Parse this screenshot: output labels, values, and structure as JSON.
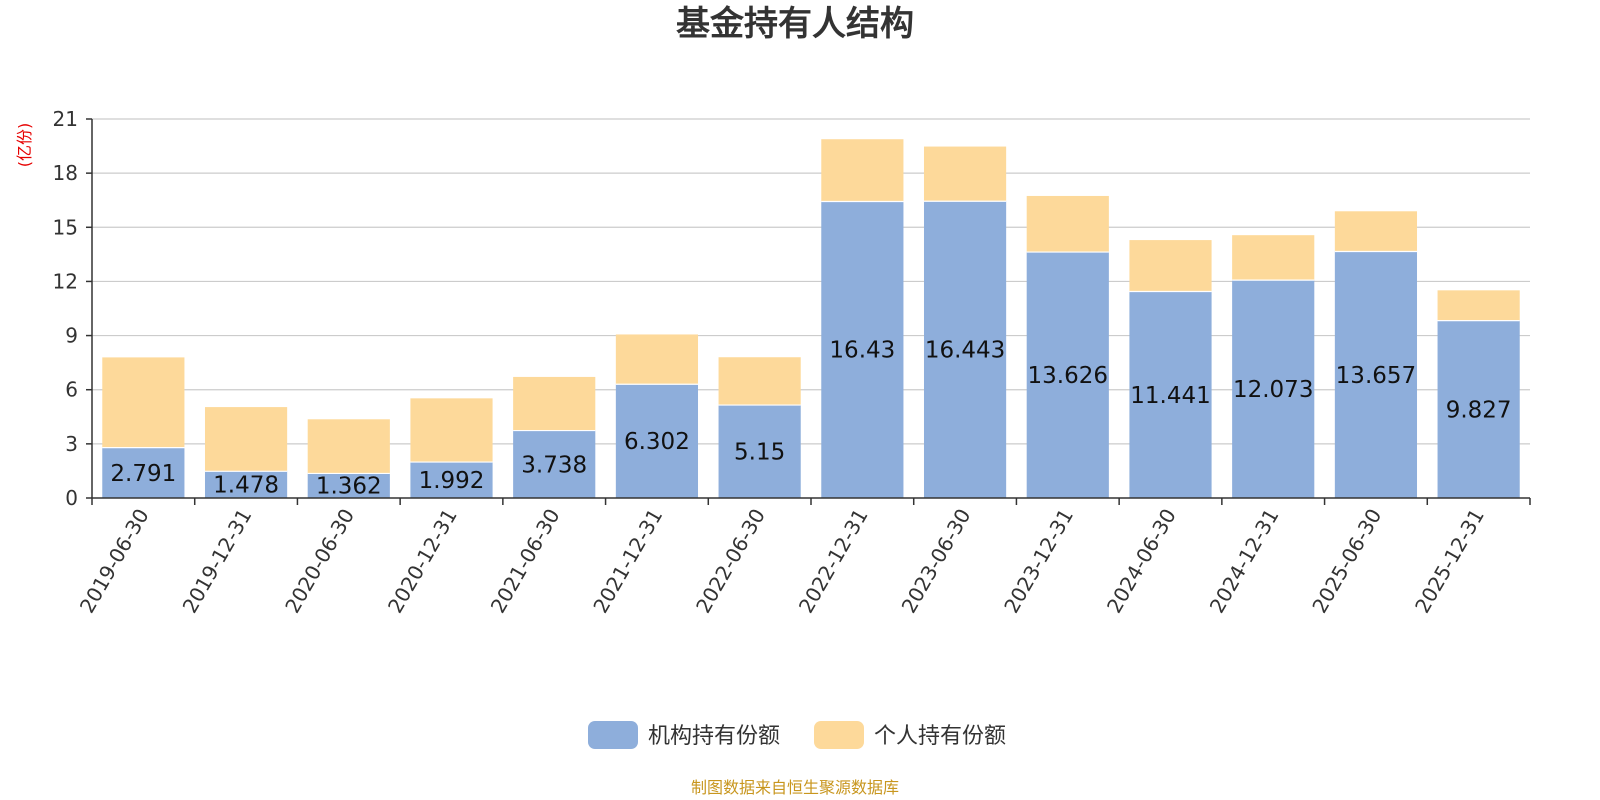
{
  "colors": {
    "institutional": "#8eaedb",
    "individual": "#fdd99a",
    "grid": "#cccccc",
    "axis": "#333333",
    "unit": "#e60000",
    "source": "#c8961e"
  },
  "source_note": "制图数据来自恒生聚源数据库",
  "chart_data": {
    "type": "bar",
    "stacked": true,
    "title": "基金持有人结构",
    "ylabel": "(亿份)",
    "ylim": [
      0,
      21
    ],
    "yticks": [
      "0",
      "3",
      "6",
      "9",
      "12",
      "15",
      "18",
      "21"
    ],
    "grid": true,
    "legend_position": "bottom",
    "categories": [
      "2019-06-30",
      "2019-12-31",
      "2020-06-30",
      "2020-12-31",
      "2021-06-30",
      "2021-12-31",
      "2022-06-30",
      "2022-12-31",
      "2023-06-30",
      "2023-12-31",
      "2024-06-30",
      "2024-12-31",
      "2025-06-30",
      "2025-12-31"
    ],
    "series": [
      {
        "name": "机构持有份额",
        "values": [
          2.791,
          1.478,
          1.362,
          1.992,
          3.738,
          6.302,
          5.15,
          16.43,
          16.443,
          13.626,
          11.441,
          12.073,
          13.657,
          9.827
        ],
        "labels": [
          "2.791",
          "1.478",
          "1.362",
          "1.992",
          "3.738",
          "6.302",
          "5.15",
          "16.43",
          "16.443",
          "13.626",
          "11.441",
          "12.073",
          "13.657",
          "9.827"
        ]
      },
      {
        "name": "个人持有份额",
        "values": [
          5.0,
          3.56,
          3.0,
          3.53,
          2.97,
          2.76,
          2.65,
          3.45,
          3.03,
          3.11,
          2.85,
          2.49,
          2.23,
          1.68
        ]
      }
    ]
  }
}
